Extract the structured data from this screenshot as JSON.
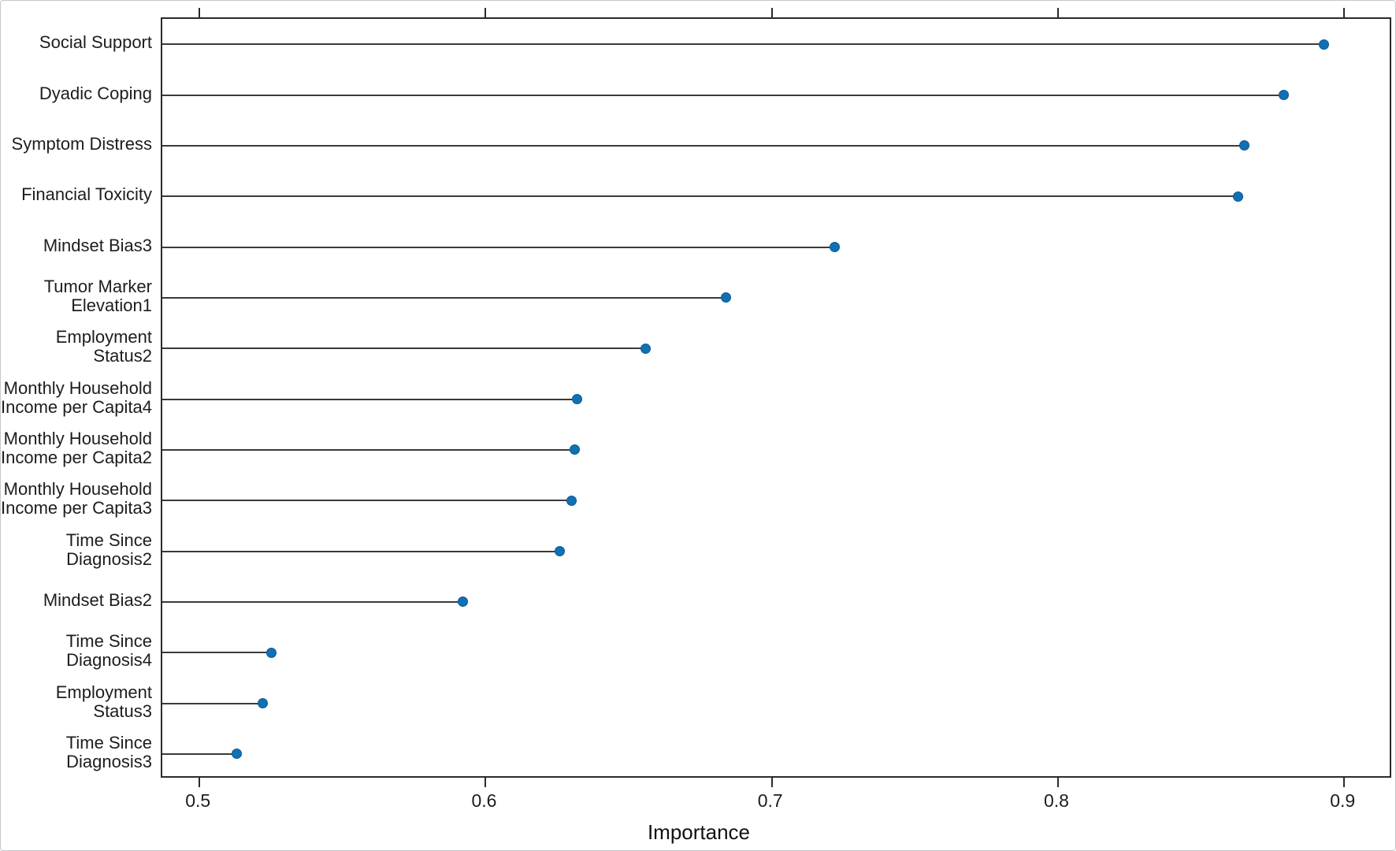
{
  "page": {
    "background": "#ffffff",
    "frame_color": "#c4c8cc"
  },
  "chart_data": {
    "type": "scatter",
    "variant": "horizontal-lollipop",
    "title": "",
    "xlabel": "Importance",
    "ylabel": "",
    "categories": [
      "Social Support",
      "Dyadic Coping",
      "Symptom Distress",
      "Financial Toxicity",
      "Mindset Bias3",
      "Tumor Marker\nElevation1",
      "Employment\nStatus2",
      "Monthly Household\nIncome per Capita4",
      "Monthly Household\nIncome per Capita2",
      "Monthly Household\nIncome per Capita3",
      "Time Since\nDiagnosis2",
      "Mindset Bias2",
      "Time Since\nDiagnosis4",
      "Employment\nStatus3",
      "Time Since\nDiagnosis3"
    ],
    "values": [
      0.893,
      0.879,
      0.865,
      0.863,
      0.722,
      0.684,
      0.656,
      0.632,
      0.631,
      0.63,
      0.626,
      0.592,
      0.525,
      0.522,
      0.513
    ],
    "xlim": [
      0.487,
      0.917
    ],
    "xticks": [
      0.5,
      0.6,
      0.7,
      0.8,
      0.9
    ],
    "xtick_labels": [
      "0.5",
      "0.6",
      "0.7",
      "0.8",
      "0.9"
    ],
    "tick_sides": [
      "top",
      "bottom"
    ],
    "grid": false,
    "legend": false,
    "colors": {
      "marker_fill": "#1070b4",
      "marker_edge": "#0a5a96",
      "stem": "#3a3a3a",
      "axis": "#2b2b2b",
      "text": "#1d1d1d"
    }
  }
}
